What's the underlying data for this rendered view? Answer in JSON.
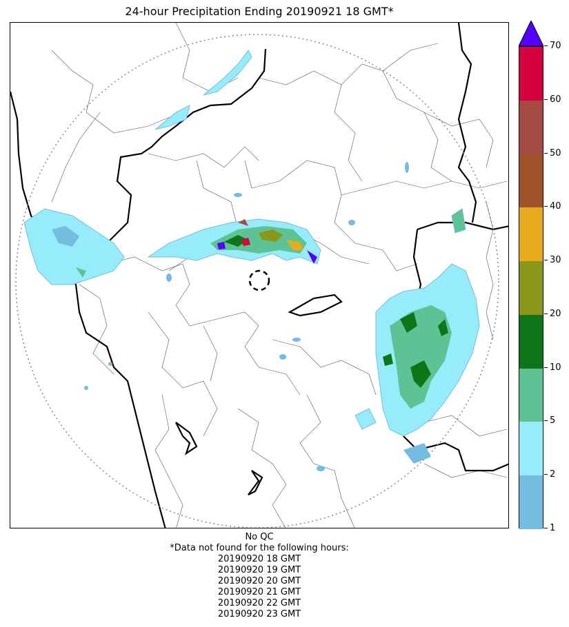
{
  "title": "24-hour Precipitation Ending 20190921 18 GMT*",
  "colorbar": {
    "tick_labels": [
      "1",
      "2",
      "5",
      "10",
      "20",
      "30",
      "40",
      "50",
      "60",
      "70"
    ],
    "colors": [
      "#74bde0",
      "#97ecfb",
      "#5ec394",
      "#0f7519",
      "#8a9718",
      "#e8ab1c",
      "#a2522a",
      "#a34a43",
      "#d5003e"
    ],
    "extend_color": "#5300ff"
  },
  "footer": {
    "qc": "No QC",
    "note": "*Data not found for the following hours:",
    "hours": [
      "20190920 18 GMT",
      "20190920 19 GMT",
      "20190920 20 GMT",
      "20190920 21 GMT",
      "20190920 22 GMT",
      "20190920 23 GMT"
    ]
  }
}
